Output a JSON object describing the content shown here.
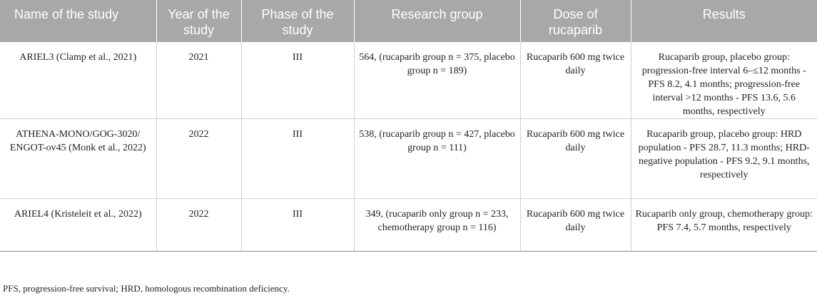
{
  "table": {
    "headers": [
      "Name of the study",
      "Year of the study",
      "Phase of the study",
      "Research group",
      "Dose of rucaparib",
      "Results"
    ],
    "rows": [
      {
        "name": "ARIEL3 (Clamp et al., 2021)",
        "year": "2021",
        "phase": "III",
        "group": "564, (rucaparib group n = 375, placebo group n = 189)",
        "dose": "Rucaparib 600 mg twice daily",
        "results": "Rucaparib group, placebo group: progression-free interval 6–≤12 months - PFS 8.2, 4.1 months; progression-free interval >12 months - PFS 13.6, 5.6 months, respectively"
      },
      {
        "name": "ATHENA-MONO/GOG-3020/ ENGOT-ov45 (Monk et al., 2022)",
        "year": "2022",
        "phase": "III",
        "group": "538, (rucaparib group n = 427, placebo group n = 111)",
        "dose": "Rucaparib 600 mg twice daily",
        "results": "Rucaparib group, placebo group: HRD population - PFS 28.7, 11.3 months; HRD-negative population - PFS 9.2, 9.1 months, respectively"
      },
      {
        "name": "ARIEL4 (Kristeleit et al., 2022)",
        "year": "2022",
        "phase": "III",
        "group": "349, (rucaparib only group n = 233, chemotherapy group n = 116)",
        "dose": "Rucaparib 600 mg twice daily",
        "results": "Rucaparib only group, chemotherapy group: PFS 7.4, 5.7 months, respectively"
      }
    ]
  },
  "footnote": "PFS, progression-free survival; HRD, homologous recombination deficiency.",
  "colors": {
    "header_bg": "#a8a8a8",
    "header_text": "#ffffff",
    "body_text": "#222222",
    "row_border": "#cfcfcf"
  }
}
